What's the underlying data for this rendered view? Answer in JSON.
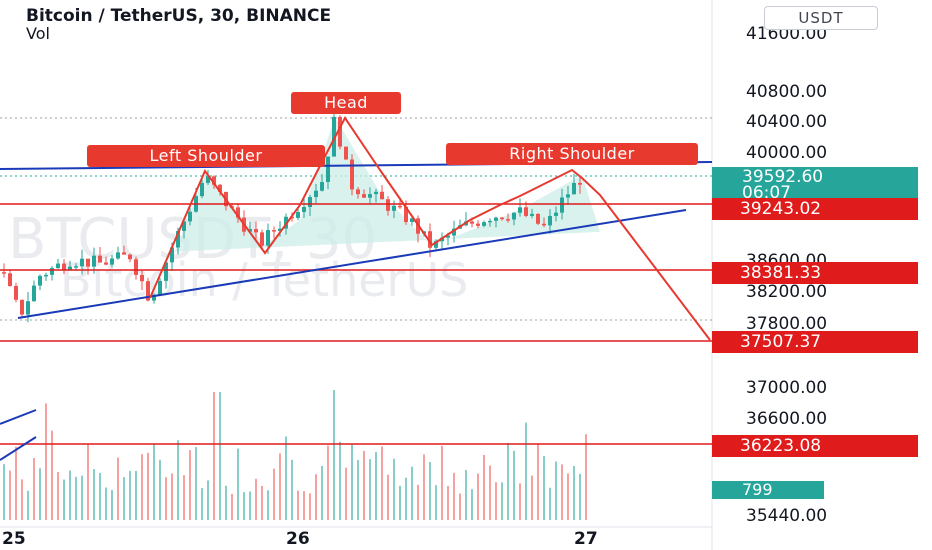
{
  "header": {
    "title": "Bitcoin / TetherUS, 30, BINANCE",
    "volume_label": "Vol",
    "currency_button": "USDT"
  },
  "watermark": {
    "line1": "BTCUSDT, 30",
    "line2": "Bitcoin / TetherUS"
  },
  "annotations": {
    "left_shoulder": "Left Shoulder",
    "head": "Head",
    "right_shoulder": "Right Shoulder"
  },
  "price_tags": {
    "last_price": "39592.60",
    "countdown": "06:07",
    "level_1": "39243.02",
    "level_2": "38381.33",
    "level_3": "37507.37",
    "level_4": "36223.08",
    "volume": "799"
  },
  "colors": {
    "up": "#26a69a",
    "down": "#ef5350",
    "support_line": "#e01b1b",
    "trend_line": "#1a3ab8",
    "pattern": "#e8392f",
    "pattern_fill": "#cdeee8"
  },
  "chart_data": {
    "type": "candlestick",
    "symbol": "Bitcoin / TetherUS",
    "interval": "30",
    "exchange": "BINANCE",
    "y_ticks": [
      "41600.00",
      "40800.00",
      "40400.00",
      "40000.00",
      "38600.00",
      "38200.00",
      "37800.00",
      "37000.00",
      "36600.00",
      "35440.00"
    ],
    "x_ticks": [
      "25",
      "26",
      "27"
    ],
    "horizontal_levels": [
      39243.02,
      38381.33,
      37507.37,
      36223.08
    ],
    "last_price": 39592.6,
    "head_and_shoulders": {
      "left_shoulder": 39600,
      "head": 40400,
      "right_shoulder": 39580,
      "neckline": 38950,
      "target": 37507.37
    }
  }
}
